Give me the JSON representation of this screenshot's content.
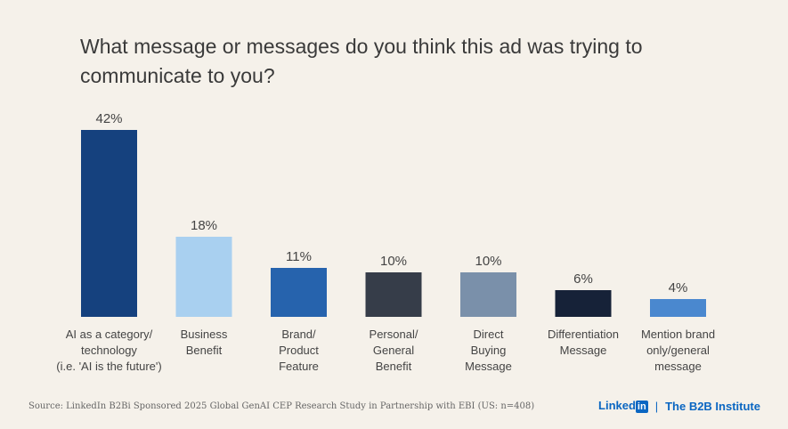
{
  "chart_data": {
    "type": "bar",
    "title": "What message or messages do you think this ad was trying to communicate to you?",
    "categories": [
      [
        "AI as a category/",
        "technology",
        "(i.e. 'AI is the future')"
      ],
      [
        "Business",
        "Benefit"
      ],
      [
        "Brand/",
        "Product",
        "Feature"
      ],
      [
        "Personal/",
        "General",
        "Benefit"
      ],
      [
        "Direct",
        "Buying",
        "Message"
      ],
      [
        "Differentiation",
        "Message"
      ],
      [
        "Mention brand",
        "only/general",
        "message"
      ]
    ],
    "values": [
      42,
      18,
      11,
      10,
      10,
      6,
      4
    ],
    "value_labels": [
      "42%",
      "18%",
      "11%",
      "10%",
      "10%",
      "6%",
      "4%"
    ],
    "colors": [
      "#15417e",
      "#a9d0f0",
      "#2663ad",
      "#363d49",
      "#7a90aa",
      "#162238",
      "#4a88cf"
    ],
    "ylim": [
      0,
      42
    ],
    "grid": false,
    "legend": "none"
  },
  "footer": {
    "source": "Source: LinkedIn B2Bi Sponsored 2025 Global GenAI CEP Research Study in Partnership with EBI (US: n=408)",
    "brand_linked": "Linked",
    "brand_in": "in",
    "brand_sep": "|",
    "brand_b2b": "The B2B Institute"
  }
}
